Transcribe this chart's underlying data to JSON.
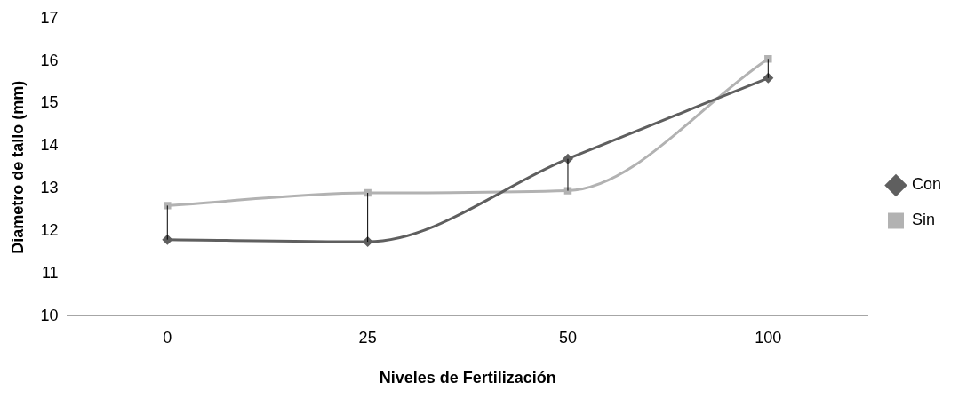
{
  "chart_data": {
    "type": "line",
    "xlabel": "Niveles de Fertilización",
    "ylabel": "Diametro de tallo (mm)",
    "categories": [
      "0",
      "25",
      "50",
      "100"
    ],
    "series": [
      {
        "name": "Con",
        "color": "#5f5f5f",
        "marker": "diamond",
        "values": [
          11.8,
          11.75,
          13.7,
          15.6
        ]
      },
      {
        "name": "Sin",
        "color": "#b2b2b2",
        "marker": "square",
        "values": [
          12.6,
          12.9,
          12.95,
          16.05
        ]
      }
    ],
    "ylim": [
      10,
      17
    ],
    "yticks": [
      10,
      11,
      12,
      13,
      14,
      15,
      16,
      17
    ],
    "grid": false,
    "legend": "right"
  }
}
